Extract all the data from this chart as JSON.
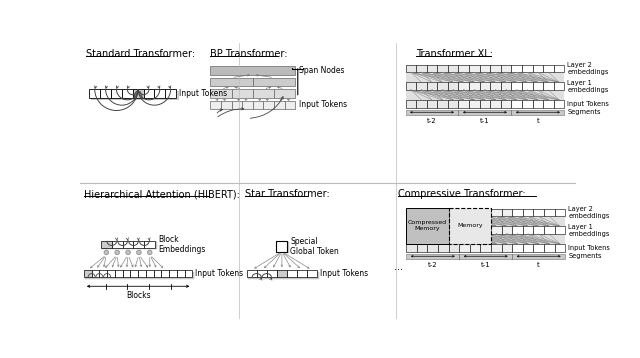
{
  "bg_color": "#ffffff",
  "panel_titles": {
    "standard": "Standard Transformer:",
    "bp": "BP Transformer:",
    "xl": "Transformer XL:",
    "hibert": "Hierarchical Attention (HIBERT):",
    "star": "Star Transformer:",
    "compressive": "Compressive Transformer:"
  }
}
